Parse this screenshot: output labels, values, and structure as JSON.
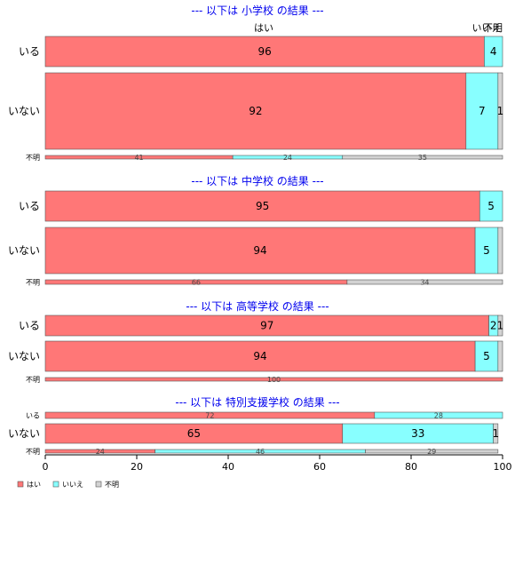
{
  "chart_data": {
    "type": "bar",
    "orientation": "horizontal",
    "stacked": true,
    "xlim": [
      0,
      100
    ],
    "x_ticks": [
      "0",
      "20",
      "40",
      "60",
      "80",
      "100"
    ],
    "colors": {
      "はい": "#ff7777",
      "いいえ": "#88ffff",
      "不明": "#d3d3d3"
    },
    "legend": {
      "placement": "bottom-left",
      "items": [
        {
          "name": "はい",
          "color": "#ff7777"
        },
        {
          "name": "いいえ",
          "color": "#88ffff"
        },
        {
          "name": "不明",
          "color": "#d3d3d3"
        }
      ]
    },
    "column_headers": [
      "はい",
      "いいえ",
      "不明"
    ],
    "panels": [
      {
        "title": "--- 以下は 小学校 の結果 ---",
        "rows": [
          {
            "label": "いる",
            "values": [
              96,
              4,
              0
            ],
            "labels": [
              "96",
              "4",
              ""
            ]
          },
          {
            "label": "いない",
            "values": [
              92,
              7,
              1
            ],
            "labels": [
              "92",
              "7",
              "1"
            ]
          },
          {
            "label": "不明",
            "values": [
              41,
              24,
              35
            ],
            "labels": [
              "41",
              "24",
              "35"
            ]
          }
        ]
      },
      {
        "title": "--- 以下は 中学校 の結果 ---",
        "rows": [
          {
            "label": "いる",
            "values": [
              95,
              5,
              0
            ],
            "labels": [
              "95",
              "5",
              ""
            ]
          },
          {
            "label": "いない",
            "values": [
              94,
              5,
              1
            ],
            "labels": [
              "94",
              "5",
              ""
            ]
          },
          {
            "label": "不明",
            "values": [
              66,
              0,
              34
            ],
            "labels": [
              "66",
              "",
              "34"
            ]
          }
        ]
      },
      {
        "title": "--- 以下は 高等学校 の結果 ---",
        "rows": [
          {
            "label": "いる",
            "values": [
              97,
              2,
              1
            ],
            "labels": [
              "97",
              "2",
              "1"
            ]
          },
          {
            "label": "いない",
            "values": [
              94,
              5,
              1
            ],
            "labels": [
              "94",
              "5",
              ""
            ]
          },
          {
            "label": "不明",
            "values": [
              100,
              0,
              0
            ],
            "labels": [
              "100",
              "",
              ""
            ]
          }
        ]
      },
      {
        "title": "--- 以下は 特別支援学校 の結果 ---",
        "rows": [
          {
            "label": "いる",
            "values": [
              72,
              28,
              0
            ],
            "labels": [
              "72",
              "28",
              ""
            ]
          },
          {
            "label": "いない",
            "values": [
              65,
              33,
              1
            ],
            "labels": [
              "65",
              "33",
              "1"
            ]
          },
          {
            "label": "不明",
            "values": [
              24,
              46,
              29
            ],
            "labels": [
              "24",
              "46",
              "29"
            ]
          }
        ]
      }
    ]
  }
}
